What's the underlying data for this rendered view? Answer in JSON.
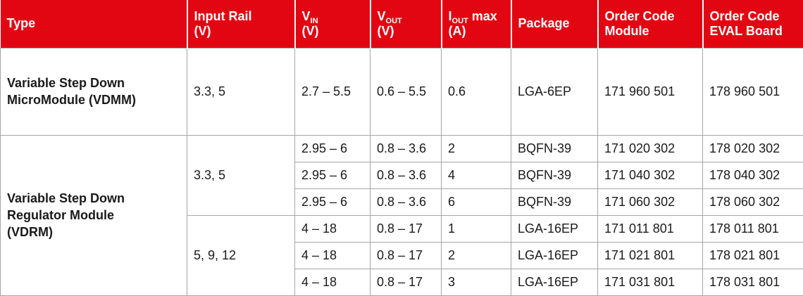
{
  "colors": {
    "header_background": "#e20613",
    "header_text": "#ffffff",
    "grid_line": "#a6a6a6",
    "body_text": "#1a1a1a"
  },
  "header": {
    "type": {
      "label": "Type"
    },
    "input_rail": {
      "line1": "Input Rail",
      "line2": "(V)"
    },
    "vin": {
      "symbol": "V",
      "subscript": "IN",
      "unit": "(V)"
    },
    "vout": {
      "symbol": "V",
      "subscript": "OUT",
      "unit": "(V)"
    },
    "iout_max": {
      "symbol": "I",
      "subscript": "OUT",
      "suffix": " max",
      "unit": "(A)"
    },
    "package": {
      "label": "Package"
    },
    "order_code_module": {
      "line1": "Order Code",
      "line2": "Module"
    },
    "order_code_eval": {
      "line1": "Order Code",
      "line2": "EVAL Board"
    }
  },
  "body": {
    "vdmm": {
      "type": "Variable Step Down MicroModule (VDMM)",
      "input_rail": "3.3, 5",
      "rows": [
        {
          "vin": "2.7 – 5.5",
          "vout": "0.6 – 5.5",
          "iout": "0.6",
          "package": "LGA-6EP",
          "order_module": "171 960 501",
          "order_eval": "178 960 501"
        }
      ]
    },
    "vdrm": {
      "type": "Variable Step Down Regulator Module (VDRM)",
      "subgroups": [
        {
          "input_rail": "3.3, 5",
          "rows": [
            {
              "vin": "2.95 – 6",
              "vout": "0.8 – 3.6",
              "iout": "2",
              "package": "BQFN-39",
              "order_module": "171 020 302",
              "order_eval": "178 020 302"
            },
            {
              "vin": "2.95 – 6",
              "vout": "0.8 – 3.6",
              "iout": "4",
              "package": "BQFN-39",
              "order_module": "171 040 302",
              "order_eval": "178 040 302"
            },
            {
              "vin": "2.95 – 6",
              "vout": "0.8 – 3.6",
              "iout": "6",
              "package": "BQFN-39",
              "order_module": "171 060 302",
              "order_eval": "178 060 302"
            }
          ]
        },
        {
          "input_rail": "5, 9, 12",
          "rows": [
            {
              "vin": "4 – 18",
              "vout": "0.8 – 17",
              "iout": "1",
              "package": "LGA-16EP",
              "order_module": "171 011 801",
              "order_eval": "178 011 801"
            },
            {
              "vin": "4 – 18",
              "vout": "0.8 – 17",
              "iout": "2",
              "package": "LGA-16EP",
              "order_module": "171 021 801",
              "order_eval": "178 021 801"
            },
            {
              "vin": "4 – 18",
              "vout": "0.8 – 17",
              "iout": "3",
              "package": "LGA-16EP",
              "order_module": "171 031 801",
              "order_eval": "178 031 801"
            }
          ]
        }
      ]
    }
  }
}
